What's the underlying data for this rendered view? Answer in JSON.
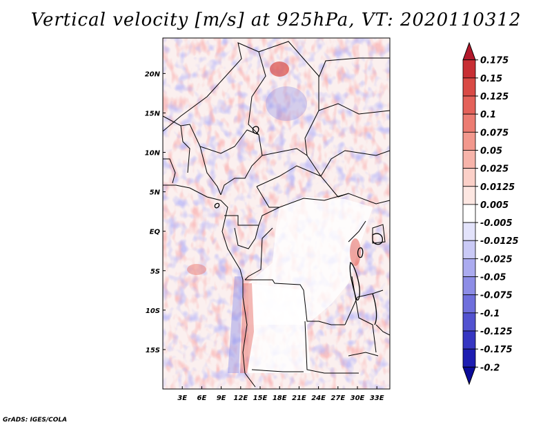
{
  "title": "Vertical velocity [m/s] at 925hPa, VT: 2020110312",
  "footer": "GrADS: IGES/COLA",
  "map": {
    "region": "Central Africa",
    "field": "vertical velocity",
    "units": "m/s",
    "level": "925hPa",
    "valid_time": "2020110312",
    "lon_range": [
      0,
      35
    ],
    "lat_range": [
      -20,
      24.5
    ],
    "x_tick_labels": [
      {
        "lon": 3,
        "label": "3E"
      },
      {
        "lon": 6,
        "label": "6E"
      },
      {
        "lon": 9,
        "label": "9E"
      },
      {
        "lon": 12,
        "label": "12E"
      },
      {
        "lon": 15,
        "label": "15E"
      },
      {
        "lon": 18,
        "label": "18E"
      },
      {
        "lon": 21,
        "label": "21E"
      },
      {
        "lon": 24,
        "label": "24E"
      },
      {
        "lon": 27,
        "label": "27E"
      },
      {
        "lon": 30,
        "label": "30E"
      },
      {
        "lon": 33,
        "label": "33E"
      }
    ],
    "y_tick_labels": [
      {
        "lat": 20,
        "label": "20N"
      },
      {
        "lat": 15,
        "label": "15N"
      },
      {
        "lat": 10,
        "label": "10N"
      },
      {
        "lat": 5,
        "label": "5N"
      },
      {
        "lat": 0,
        "label": "EQ"
      },
      {
        "lat": -5,
        "label": "5S"
      },
      {
        "lat": -10,
        "label": "10S"
      },
      {
        "lat": -15,
        "label": "15S"
      }
    ]
  },
  "colorbar": {
    "labels": [
      "0.175",
      "0.15",
      "0.125",
      "0.1",
      "0.075",
      "0.05",
      "0.025",
      "0.0125",
      "0.005",
      "-0.005",
      "-0.0125",
      "-0.025",
      "-0.05",
      "-0.075",
      "-0.1",
      "-0.125",
      "-0.175",
      "-0.2"
    ],
    "colors": [
      "#b2182b",
      "#c82f34",
      "#d94a45",
      "#e4625a",
      "#ec7c72",
      "#f2988d",
      "#f7b4aa",
      "#fbd0c8",
      "#fde7e2",
      "#ffffff",
      "#e3e3fb",
      "#cacaf6",
      "#ababef",
      "#8d8de6",
      "#6f6fdc",
      "#5252d0",
      "#3636c2",
      "#1d1db1",
      "#0b0b99"
    ]
  }
}
